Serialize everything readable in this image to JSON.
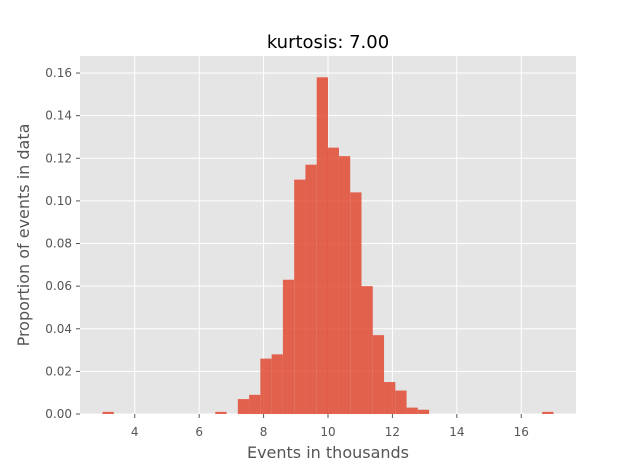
{
  "chart_data": {
    "type": "bar",
    "title": "kurtosis: 7.00",
    "xlabel": "Events in thousands",
    "ylabel": "Proportion of events in data",
    "xlim": [
      2.3,
      17.7
    ],
    "ylim": [
      0,
      0.168
    ],
    "xticks": [
      4,
      6,
      8,
      10,
      12,
      14,
      16
    ],
    "yticks": [
      0.0,
      0.02,
      0.04,
      0.06,
      0.08,
      0.1,
      0.12,
      0.14,
      0.16
    ],
    "ytick_labels": [
      "0.00",
      "0.02",
      "0.04",
      "0.06",
      "0.08",
      "0.10",
      "0.12",
      "0.14",
      "0.16"
    ],
    "bin_width": 0.35,
    "bin_starts": [
      3.0,
      6.5,
      7.2,
      7.55,
      7.9,
      8.25,
      8.6,
      8.95,
      9.3,
      9.65,
      9.99,
      10.34,
      10.69,
      11.04,
      11.39,
      11.74,
      12.09,
      12.44,
      12.79,
      16.65
    ],
    "values": [
      0.001,
      0.001,
      0.007,
      0.009,
      0.026,
      0.028,
      0.063,
      0.11,
      0.117,
      0.158,
      0.125,
      0.121,
      0.104,
      0.06,
      0.037,
      0.015,
      0.011,
      0.003,
      0.002,
      0.001
    ],
    "grid": true,
    "colors": {
      "bar": "#E24A33",
      "background": "#E5E5E5",
      "grid": "#FFFFFF"
    }
  }
}
